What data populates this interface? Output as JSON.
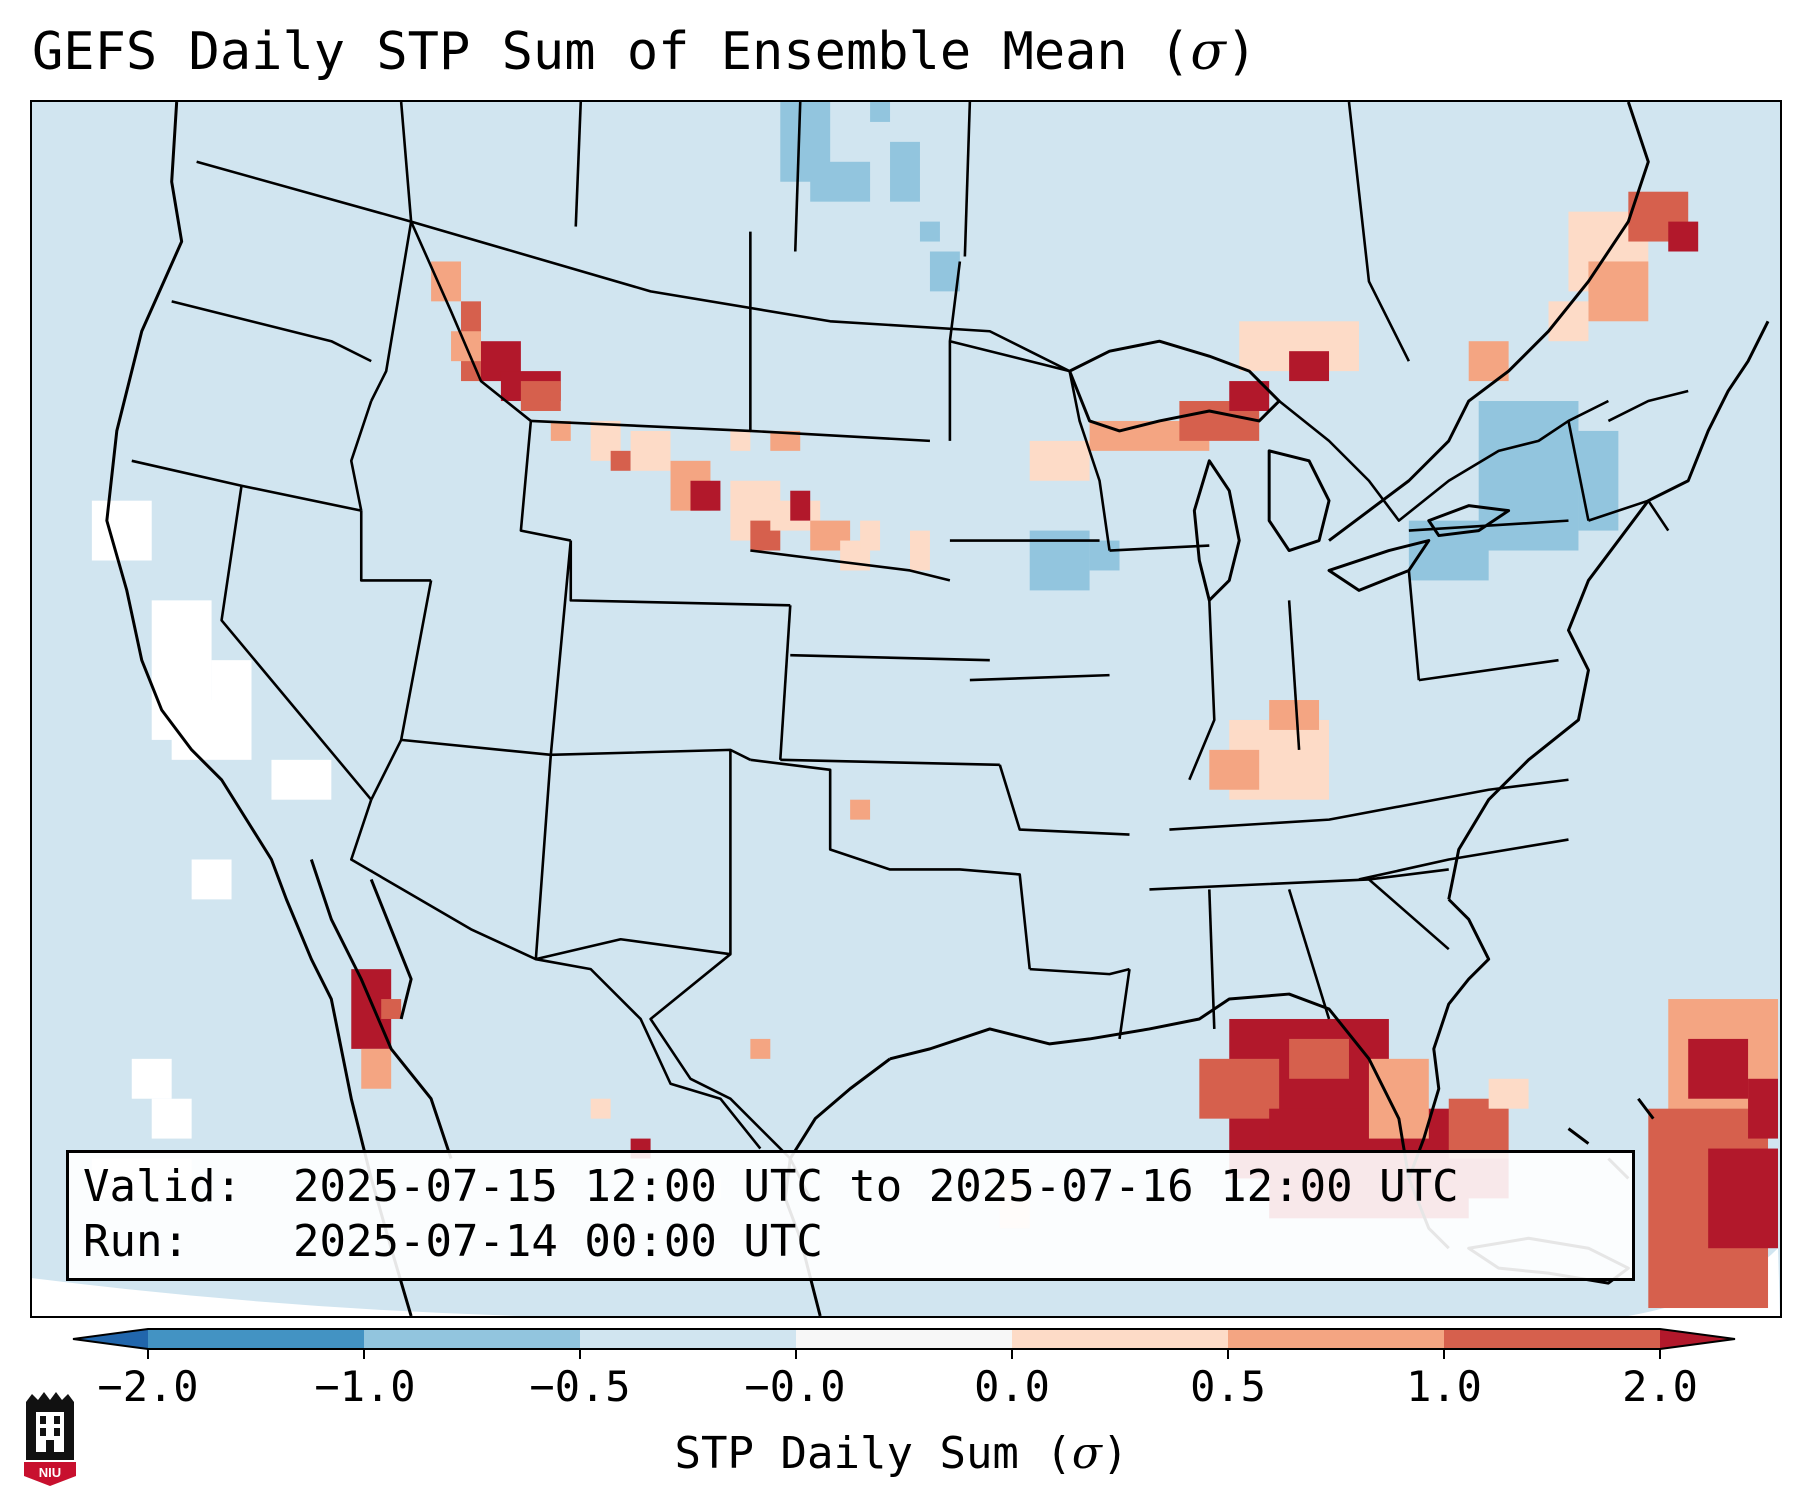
{
  "figure": {
    "title_text": "GEFS Daily STP Sum of Ensemble Mean (",
    "title_symbol": "σ",
    "title_close": ")"
  },
  "info": {
    "valid_label": "Valid:",
    "valid_value": "2025-07-15 12:00 UTC to 2025-07-16 12:00 UTC",
    "run_label": "Run:",
    "run_value": "2025-07-14 00:00 UTC"
  },
  "colorbar": {
    "ticks": [
      "−2.0",
      "−1.0",
      "−0.5",
      "−0.0",
      "0.0",
      "0.5",
      "1.0",
      "2.0"
    ],
    "label_text": "STP Daily Sum (",
    "label_symbol": "σ",
    "label_close": ")",
    "colors": [
      "#4393c3",
      "#92c5de",
      "#d1e5f0",
      "#f7f7f7",
      "#fddbc7",
      "#f4a582",
      "#d6604d",
      "#b2182b"
    ],
    "extend_low_color": "#2166ac",
    "extend_high_color": "#b2182b"
  },
  "logo": {
    "text": "NIU",
    "color": "#c8102e"
  },
  "map": {
    "projection": "Lambert Conformal",
    "region": "Contiguous United States",
    "background_color": "#d1e5f0"
  }
}
